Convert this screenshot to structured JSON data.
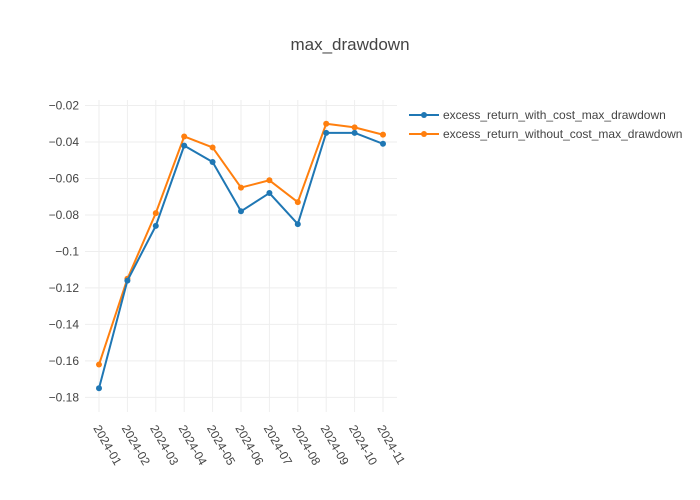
{
  "chart_data": {
    "type": "line",
    "title": "max_drawdown",
    "xlabel": "",
    "ylabel": "",
    "x": [
      "2024-01",
      "2024-02",
      "2024-03",
      "2024-04",
      "2024-05",
      "2024-06",
      "2024-07",
      "2024-08",
      "2024-09",
      "2024-10",
      "2024-11"
    ],
    "ylim": [
      -0.188,
      -0.017
    ],
    "yticks": [
      -0.02,
      -0.04,
      -0.06,
      -0.08,
      -0.1,
      -0.12,
      -0.14,
      -0.16,
      -0.18
    ],
    "ytick_labels": [
      "−0.02",
      "−0.04",
      "−0.06",
      "−0.08",
      "−0.1",
      "−0.12",
      "−0.14",
      "−0.16",
      "−0.18"
    ],
    "grid": true,
    "legend": "top-right",
    "series": [
      {
        "name": "excess_return_with_cost_max_drawdown",
        "color": "#1f77b4",
        "values": [
          -0.175,
          -0.116,
          -0.086,
          -0.042,
          -0.051,
          -0.078,
          -0.068,
          -0.085,
          -0.035,
          -0.035,
          -0.041
        ]
      },
      {
        "name": "excess_return_without_cost_max_drawdown",
        "color": "#ff7f0e",
        "values": [
          -0.162,
          -0.115,
          -0.079,
          -0.037,
          -0.043,
          -0.065,
          -0.061,
          -0.073,
          -0.03,
          -0.032,
          -0.036
        ]
      }
    ]
  }
}
